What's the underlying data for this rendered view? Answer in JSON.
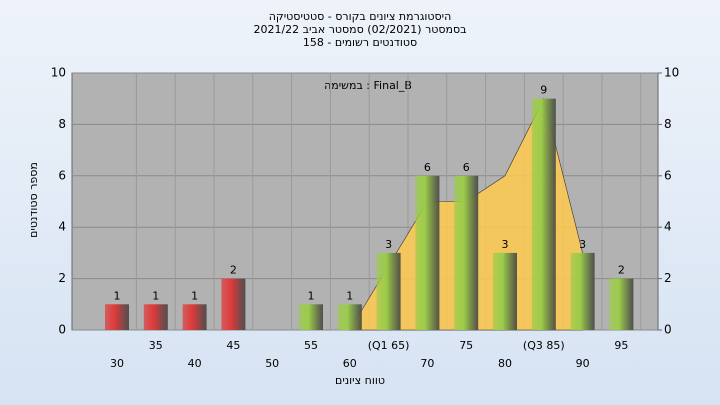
{
  "chart_data": {
    "type": "bar",
    "title": "היסטוגרמת ציונים בקורס - סטטיסטיקה",
    "subtitle": "בסמסטר  (02/2021)  סמסטר אביב 2021/22",
    "subtitle2": "סטודנטים רשומים - 158",
    "annotation": "במשימה : Final_B",
    "y_label": "מספר סטודנטים",
    "x_label": "טווח ציונים",
    "categories": [
      "30",
      "35",
      "40",
      "45",
      "50",
      "55",
      "60",
      "(Q1 65)",
      "70",
      "75",
      "80",
      "(Q3 85)",
      "90",
      "95"
    ],
    "values": [
      1,
      1,
      1,
      2,
      0,
      1,
      1,
      3,
      6,
      6,
      3,
      9,
      3,
      2
    ],
    "colors": [
      "#e03a3a",
      "#e03a3a",
      "#e03a3a",
      "#e03a3a",
      "#e03a3a",
      "#9ccc4a",
      "#9ccc4a",
      "#9ccc4a",
      "#9ccc4a",
      "#9ccc4a",
      "#9ccc4a",
      "#9ccc4a",
      "#9ccc4a",
      "#9ccc4a"
    ],
    "area_values": [
      null,
      null,
      null,
      null,
      null,
      null,
      0,
      2.5,
      5,
      5,
      6,
      9,
      3,
      null
    ],
    "area_color": "#ffc94f",
    "ylim": [
      0,
      10
    ],
    "yticks": [
      0,
      2,
      4,
      6,
      8,
      10
    ],
    "y2lim": [
      0,
      10
    ],
    "y2ticks": [
      0,
      2,
      4,
      6,
      8,
      10
    ],
    "grid": true
  }
}
